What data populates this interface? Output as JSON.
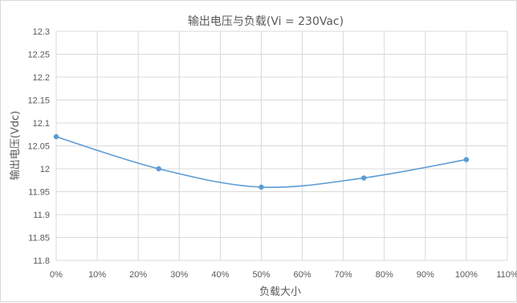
{
  "chart_data": {
    "type": "line",
    "title": "输出电压与负载(Vi = 230Vac)",
    "xlabel": "负载大小",
    "ylabel": "输出电压(Vdc)",
    "x": [
      0,
      25,
      50,
      75,
      100
    ],
    "series": [
      {
        "values": [
          12.07,
          12.0,
          11.96,
          11.98,
          12.02
        ],
        "color": "#5b9bd5"
      }
    ],
    "xlim": [
      0,
      110
    ],
    "ylim": [
      11.8,
      12.3
    ],
    "x_ticks": [
      "0%",
      "10%",
      "20%",
      "30%",
      "40%",
      "50%",
      "60%",
      "70%",
      "80%",
      "90%",
      "100%",
      "110%"
    ],
    "y_ticks": [
      "12.3",
      "12.25",
      "12.2",
      "12.15",
      "12.1",
      "12.05",
      "12",
      "11.95",
      "11.9",
      "11.85",
      "11.8"
    ],
    "grid": true,
    "smooth": true
  }
}
